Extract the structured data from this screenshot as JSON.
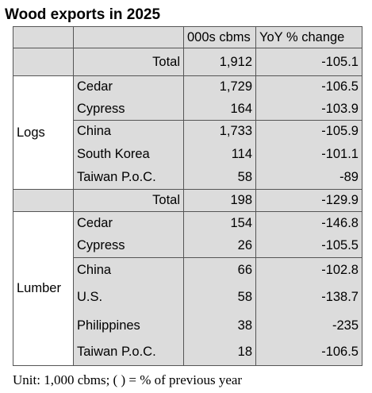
{
  "title": "Wood exports in 2025",
  "header": {
    "col_volume": "000s cbms",
    "col_change": "YoY % change"
  },
  "logs": {
    "category": "Logs",
    "total": {
      "label": "Total",
      "volume": "1,912",
      "change": "-105.1"
    },
    "rows": [
      {
        "label": "Cedar",
        "volume": "1,729",
        "change": "-106.5"
      },
      {
        "label": "Cypress",
        "volume": "164",
        "change": "-103.9"
      },
      {
        "label": "China",
        "volume": "1,733",
        "change": "-105.9"
      },
      {
        "label": "South Korea",
        "volume": "114",
        "change": "-101.1"
      },
      {
        "label": "Taiwan P.o.C.",
        "volume": "58",
        "change": "-89"
      }
    ]
  },
  "lumber": {
    "category": "Lumber",
    "total": {
      "label": "Total",
      "volume": "198",
      "change": "-129.9"
    },
    "rows": [
      {
        "label": "Cedar",
        "volume": "154",
        "change": "-146.8"
      },
      {
        "label": "Cypress",
        "volume": "26",
        "change": "-105.5"
      },
      {
        "label": "China",
        "volume": "66",
        "change": "-102.8"
      },
      {
        "label": "U.S.",
        "volume": "58",
        "change": "-138.7"
      },
      {
        "label": "Philippines",
        "volume": "38",
        "change": "-235"
      },
      {
        "label": "Taiwan P.o.C.",
        "volume": "18",
        "change": "-106.5"
      }
    ]
  },
  "footnote": "Unit: 1,000 cbms; ( ) = % of previous year"
}
